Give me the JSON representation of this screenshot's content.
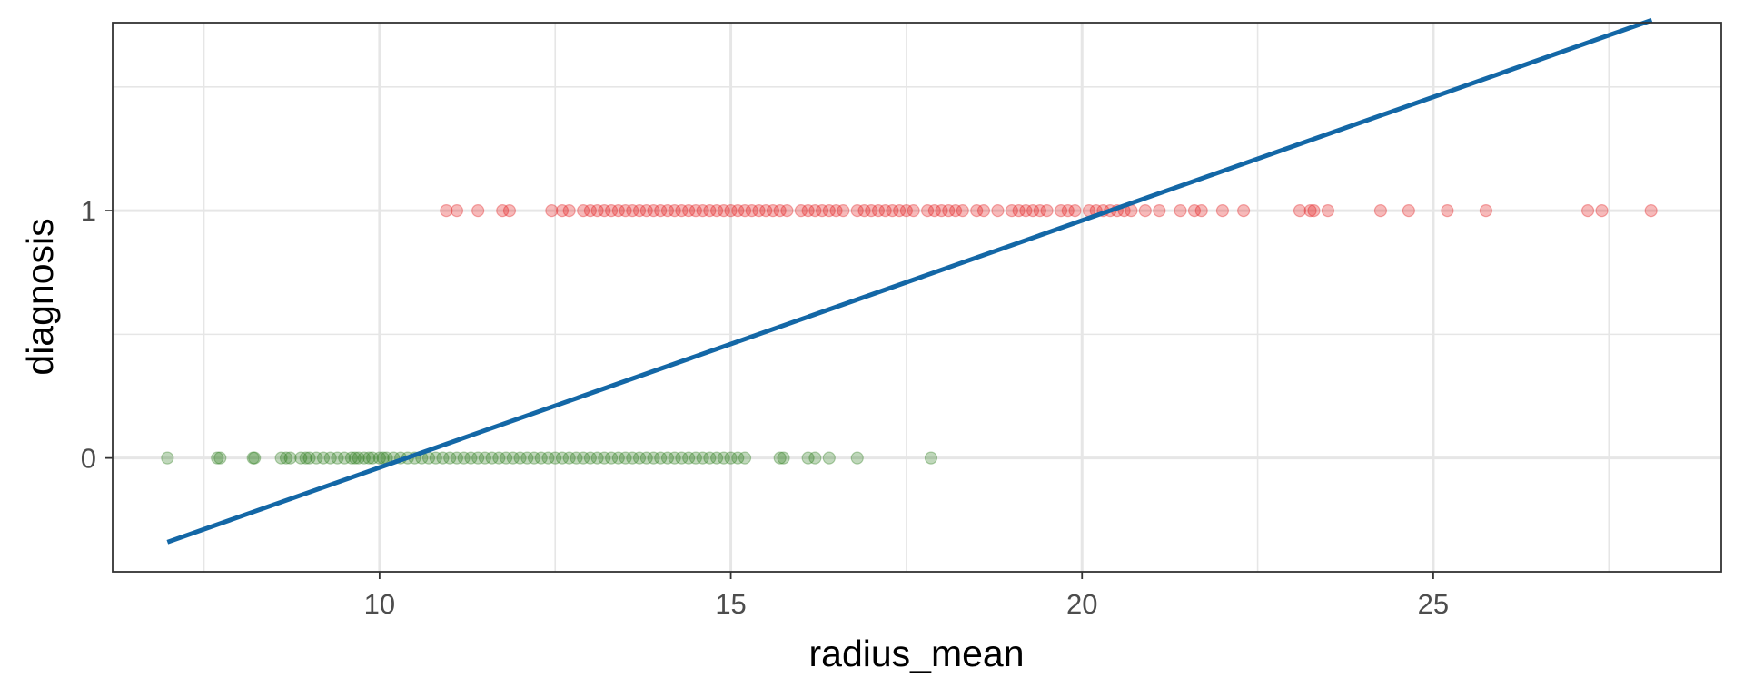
{
  "chart_data": {
    "type": "scatter",
    "title": "",
    "xlabel": "radius_mean",
    "ylabel": "diagnosis",
    "xlim": [
      6.2,
      29.1
    ],
    "ylim": [
      -0.46,
      1.76
    ],
    "x_ticks": [
      10,
      15,
      20,
      25
    ],
    "x_tick_labels": [
      "10",
      "15",
      "20",
      "25"
    ],
    "y_ticks": [
      0,
      1
    ],
    "y_tick_labels": [
      "0",
      "1"
    ],
    "x_minor_gridlines": [
      7.5,
      12.5,
      17.5,
      22.5,
      27.5
    ],
    "y_minor_gridlines": [
      0.5,
      1.5
    ],
    "grid": true,
    "legend": "none",
    "colors": {
      "diagnosis_0": "#2e7d1f",
      "diagnosis_1": "#e31a1c",
      "fit_line": "#1367a6",
      "grid": "#e6e6e6",
      "panel_border": "#333333"
    },
    "series": [
      {
        "diagnosis": 0,
        "x": [
          6.98,
          7.69,
          7.73,
          8.2,
          8.22,
          8.6,
          8.67,
          8.73,
          8.88,
          8.95,
          9.0,
          9.1,
          9.2,
          9.3,
          9.4,
          9.5,
          9.6,
          9.65,
          9.7,
          9.78,
          9.85,
          9.9,
          10.0,
          10.05,
          10.1,
          10.2,
          10.3,
          10.4,
          10.5,
          10.6,
          10.7,
          10.8,
          10.9,
          11.0,
          11.1,
          11.2,
          11.3,
          11.4,
          11.5,
          11.6,
          11.7,
          11.8,
          11.9,
          12.0,
          12.1,
          12.2,
          12.3,
          12.4,
          12.5,
          12.6,
          12.7,
          12.8,
          12.9,
          13.0,
          13.1,
          13.2,
          13.3,
          13.4,
          13.5,
          13.6,
          13.7,
          13.8,
          13.9,
          14.0,
          14.1,
          14.2,
          14.3,
          14.4,
          14.5,
          14.6,
          14.7,
          14.8,
          14.9,
          15.0,
          15.1,
          15.2,
          15.7,
          15.75,
          16.1,
          16.2,
          16.4,
          16.8,
          17.85
        ]
      },
      {
        "diagnosis": 1,
        "x": [
          10.95,
          11.1,
          11.4,
          11.75,
          11.85,
          12.45,
          12.6,
          12.7,
          12.9,
          13.0,
          13.1,
          13.2,
          13.3,
          13.4,
          13.5,
          13.6,
          13.7,
          13.8,
          13.9,
          14.0,
          14.1,
          14.2,
          14.3,
          14.4,
          14.5,
          14.6,
          14.7,
          14.8,
          14.9,
          15.0,
          15.1,
          15.2,
          15.3,
          15.4,
          15.5,
          15.6,
          15.7,
          15.8,
          16.0,
          16.1,
          16.2,
          16.3,
          16.4,
          16.5,
          16.6,
          16.8,
          16.9,
          17.0,
          17.1,
          17.2,
          17.3,
          17.4,
          17.5,
          17.6,
          17.8,
          17.9,
          18.0,
          18.1,
          18.2,
          18.3,
          18.5,
          18.6,
          18.8,
          19.0,
          19.1,
          19.2,
          19.3,
          19.4,
          19.5,
          19.7,
          19.8,
          19.9,
          20.1,
          20.2,
          20.3,
          20.4,
          20.5,
          20.6,
          20.7,
          20.9,
          21.1,
          21.4,
          21.6,
          21.7,
          22.0,
          22.3,
          23.1,
          23.25,
          23.3,
          23.5,
          24.25,
          24.65,
          25.2,
          25.75,
          27.2,
          27.4,
          28.1
        ]
      }
    ],
    "fit_line": {
      "x": [
        6.98,
        28.11
      ],
      "y": [
        -0.34,
        1.77
      ]
    }
  }
}
